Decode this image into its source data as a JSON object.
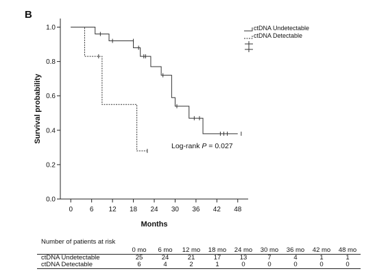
{
  "panel_label": "B",
  "chart_data": {
    "type": "line",
    "subtype": "kaplan-meier",
    "xlabel": "Months",
    "ylabel": "Survival probability",
    "xlim": [
      -3,
      51
    ],
    "ylim": [
      0,
      1.05
    ],
    "x_ticks": [
      0,
      6,
      12,
      18,
      24,
      30,
      36,
      42,
      48
    ],
    "y_ticks": [
      0.0,
      0.2,
      0.4,
      0.6,
      0.8,
      1.0
    ],
    "y_tick_labels": [
      "0.0",
      "0.2",
      "0.4",
      "0.6",
      "0.8",
      "1.0"
    ],
    "grid": false,
    "legend_position": "top-right",
    "series": [
      {
        "name": "ctDNA Undetectable",
        "line_style": "solid",
        "steps": [
          [
            0,
            1.0
          ],
          [
            7,
            0.96
          ],
          [
            11,
            0.92
          ],
          [
            18,
            0.88
          ],
          [
            20,
            0.83
          ],
          [
            23,
            0.77
          ],
          [
            26,
            0.72
          ],
          [
            29,
            0.59
          ],
          [
            30,
            0.54
          ],
          [
            34,
            0.47
          ],
          [
            38,
            0.38
          ],
          [
            48,
            0.38
          ]
        ],
        "censored": [
          [
            8.5,
            0.96
          ],
          [
            12,
            0.92
          ],
          [
            18,
            0.92
          ],
          [
            19.5,
            0.88
          ],
          [
            21,
            0.83
          ],
          [
            21.5,
            0.83
          ],
          [
            26.5,
            0.72
          ],
          [
            30.5,
            0.54
          ],
          [
            35.5,
            0.47
          ],
          [
            37,
            0.47
          ],
          [
            43,
            0.38
          ],
          [
            44,
            0.38
          ],
          [
            45,
            0.38
          ],
          [
            49,
            0.38
          ]
        ]
      },
      {
        "name": "ctDNA Detectable",
        "line_style": "dashed",
        "steps": [
          [
            0,
            1.0
          ],
          [
            4,
            0.83
          ],
          [
            9,
            0.55
          ],
          [
            19,
            0.28
          ],
          [
            22,
            0.28
          ]
        ],
        "censored": [
          [
            8,
            0.83
          ],
          [
            22,
            0.28
          ]
        ]
      }
    ],
    "annotation": {
      "prefix": "Log-rank ",
      "italic": "P",
      "suffix": " = 0.027"
    }
  },
  "risk_table": {
    "title": "Number of patients at risk",
    "headers": [
      "0 mo",
      "6 mo",
      "12 mo",
      "18 mo",
      "24 mo",
      "30 mo",
      "36 mo",
      "42 mo",
      "48 mo"
    ],
    "rows": [
      {
        "label": "ctDNA Undetectable",
        "values": [
          "25",
          "24",
          "21",
          "17",
          "13",
          "7",
          "4",
          "1",
          "1"
        ]
      },
      {
        "label": "ctDNA Detectable",
        "values": [
          "6",
          "4",
          "2",
          "1",
          "0",
          "0",
          "0",
          "0",
          "0"
        ]
      }
    ]
  }
}
